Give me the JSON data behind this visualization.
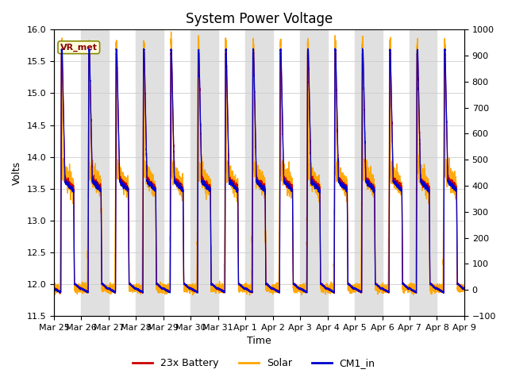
{
  "title": "System Power Voltage",
  "xlabel": "Time",
  "ylabel": "Volts",
  "ylim_left": [
    11.5,
    16.0
  ],
  "ylim_right": [
    -100,
    1000
  ],
  "yticks_left": [
    11.5,
    12.0,
    12.5,
    13.0,
    13.5,
    14.0,
    14.5,
    15.0,
    15.5,
    16.0
  ],
  "yticks_right": [
    -100,
    0,
    100,
    200,
    300,
    400,
    500,
    600,
    700,
    800,
    900,
    1000
  ],
  "x_date_labels": [
    "Mar 25",
    "Mar 26",
    "Mar 27",
    "Mar 28",
    "Mar 29",
    "Mar 30",
    "Mar 31",
    "Apr 1",
    "Apr 2",
    "Apr 3",
    "Apr 4",
    "Apr 5",
    "Apr 6",
    "Apr 7",
    "Apr 8",
    "Apr 9"
  ],
  "n_days": 15,
  "color_battery": "#CC0000",
  "color_solar": "#FFA500",
  "color_cm1": "#0000CC",
  "legend_labels": [
    "23x Battery",
    "Solar",
    "CM1_in"
  ],
  "annotation_text": "VR_met",
  "grid_color": "#CCCCCC",
  "bg_color": "#FFFFFF",
  "band_color": "#E0E0E0",
  "title_fontsize": 12,
  "label_fontsize": 9,
  "tick_fontsize": 8
}
